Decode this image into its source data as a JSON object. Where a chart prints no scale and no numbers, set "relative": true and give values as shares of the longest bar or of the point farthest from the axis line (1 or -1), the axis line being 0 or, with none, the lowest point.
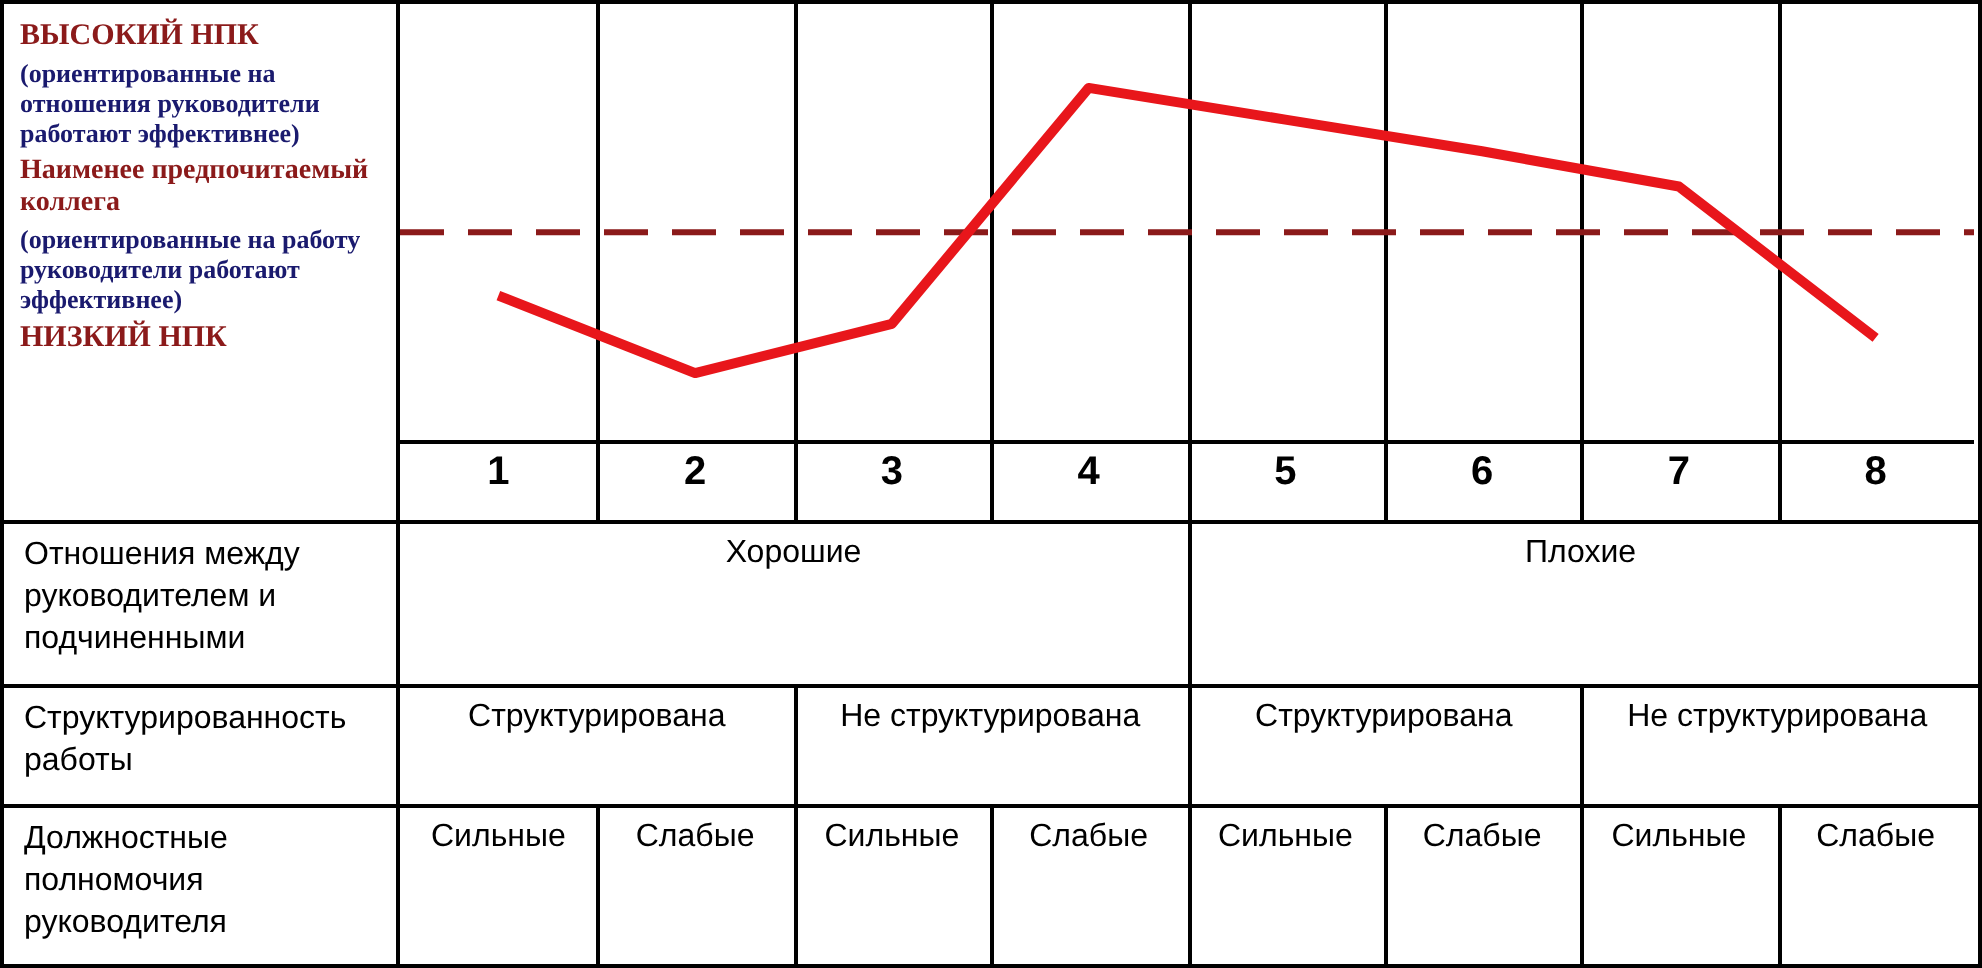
{
  "chart_data": {
    "type": "line",
    "relative": true,
    "ylabel": "Наименее предпочитаемый коллега",
    "categories": [
      "1",
      "2",
      "3",
      "4",
      "5",
      "6",
      "7",
      "8"
    ],
    "series": [
      {
        "color": "#e8161b",
        "values": [
          0.41,
          0.19,
          0.33,
          1,
          0.91,
          0.82,
          0.72,
          0.29
        ]
      }
    ],
    "ref_lines": [
      {
        "axis": "y",
        "value": 0.59,
        "color": "#8b1a1a",
        "line_style": "dashed"
      }
    ],
    "marker": "none",
    "line_style": "solid",
    "grid": false,
    "annotations": [
      "ВЫСОКИЙ НПК",
      "(ориентированные на отношения руководители работают эффективнее)",
      "(ориентированные на работу руководители работают эффективнее)",
      "НИЗКИЙ НПК",
      "Отношения между руководителем и подчиненными",
      "Хорошие",
      "Плохие",
      "Структурированность работы",
      "Структурирована",
      "Не структурирована",
      "Структурирована",
      "Не структурирована",
      "Должностные полномочия руководителя",
      "Сильные",
      "Слабые",
      "Сильные",
      "Слабые",
      "Сильные",
      "Слабые",
      "Сильные",
      "Слабые"
    ]
  }
}
